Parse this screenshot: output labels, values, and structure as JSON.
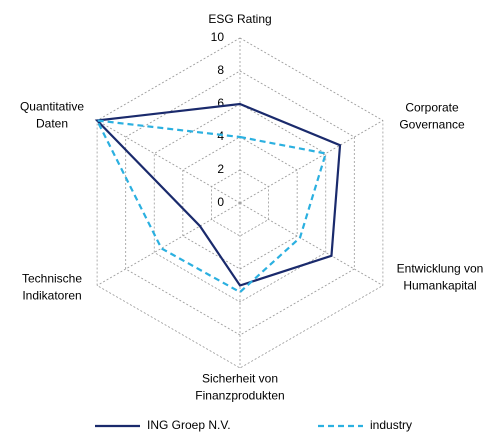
{
  "chart_data": {
    "type": "radar",
    "categories": [
      [
        "ESG Rating"
      ],
      [
        "Corporate",
        "Governance"
      ],
      [
        "Entwicklung von",
        "Humankapital"
      ],
      [
        "Sicherheit von",
        "Finanzprodukten"
      ],
      [
        "Technische",
        "Indikatoren"
      ],
      [
        "Quantitative",
        "Daten"
      ]
    ],
    "series": [
      {
        "name": "ING Groep N.V.",
        "color": "#1a2a6c",
        "dash": "solid",
        "values": [
          6,
          7,
          6.4,
          5,
          2.8,
          10
        ]
      },
      {
        "name": "industry",
        "color": "#2bb0e0",
        "dash": "dashed",
        "values": [
          4,
          6,
          4.2,
          5.4,
          5.5,
          10
        ]
      }
    ],
    "rlim": [
      0,
      10
    ],
    "rticks": [
      0,
      2,
      4,
      6,
      8,
      10
    ],
    "grid": true
  }
}
